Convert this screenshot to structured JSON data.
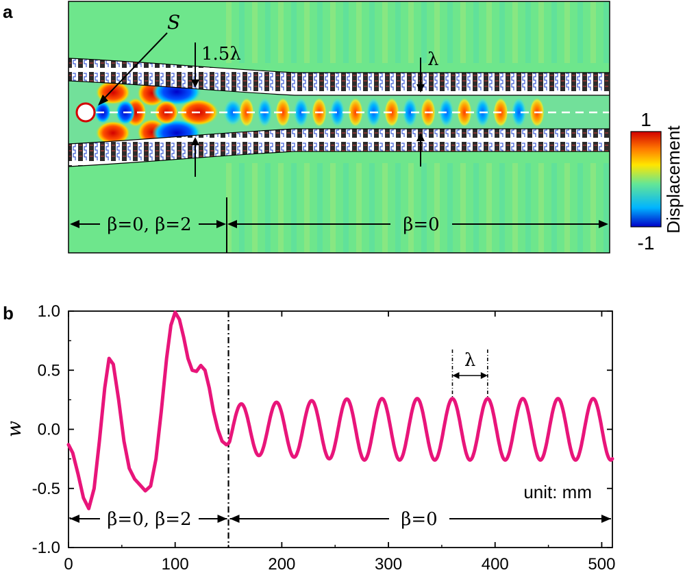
{
  "panel_a": {
    "letter": "a",
    "source_label": "S",
    "width_label_left": "1.5λ",
    "width_label_right": "λ",
    "region_left_label": "β=0, β=2",
    "region_right_label": "β=0",
    "colorbar": {
      "max_label": "1",
      "min_label": "-1",
      "title": "Displacement",
      "colors": [
        "#0000c8",
        "#00b4ff",
        "#64e696",
        "#ffe600",
        "#ff7800",
        "#d20000"
      ]
    }
  },
  "panel_b": {
    "letter": "b",
    "unit_label": "unit: mm",
    "lambda_label": "λ",
    "region_left_label": "β=0, β=2",
    "region_right_label": "β=0"
  },
  "chart_data": {
    "type": "line",
    "title": "",
    "xlabel": "",
    "ylabel": "w",
    "xlim": [
      0,
      510
    ],
    "ylim": [
      -1.0,
      1.0
    ],
    "xticks": [
      "0",
      "100",
      "200",
      "300",
      "400",
      "500"
    ],
    "yticks": [
      "-1.0",
      "-0.5",
      "0.0",
      "0.5",
      "1.0"
    ],
    "grid": false,
    "divider_x": 150,
    "lambda_marker_x": [
      360,
      393
    ],
    "line_color": "#e8157a",
    "series": [
      {
        "name": "",
        "x": [
          0,
          4,
          9,
          14,
          19,
          24,
          29,
          34,
          38,
          42,
          47,
          52,
          57,
          62,
          67,
          72,
          77,
          82,
          87,
          92,
          96,
          100,
          104,
          108,
          112,
          116,
          120,
          124,
          128,
          132,
          136,
          140,
          144,
          148,
          150
        ],
        "y": [
          -0.13,
          -0.2,
          -0.38,
          -0.58,
          -0.67,
          -0.5,
          -0.1,
          0.35,
          0.6,
          0.55,
          0.25,
          -0.1,
          -0.33,
          -0.42,
          -0.47,
          -0.52,
          -0.48,
          -0.25,
          0.15,
          0.6,
          0.88,
          0.99,
          0.93,
          0.78,
          0.6,
          0.5,
          0.49,
          0.54,
          0.5,
          0.35,
          0.15,
          0.0,
          -0.1,
          -0.13,
          -0.12
        ]
      }
    ],
    "oscillation": {
      "x_start": 150,
      "x_end": 510,
      "period": 33,
      "amplitude_start": 0.21,
      "amplitude_end": 0.26,
      "first_peak_x": 162
    }
  }
}
